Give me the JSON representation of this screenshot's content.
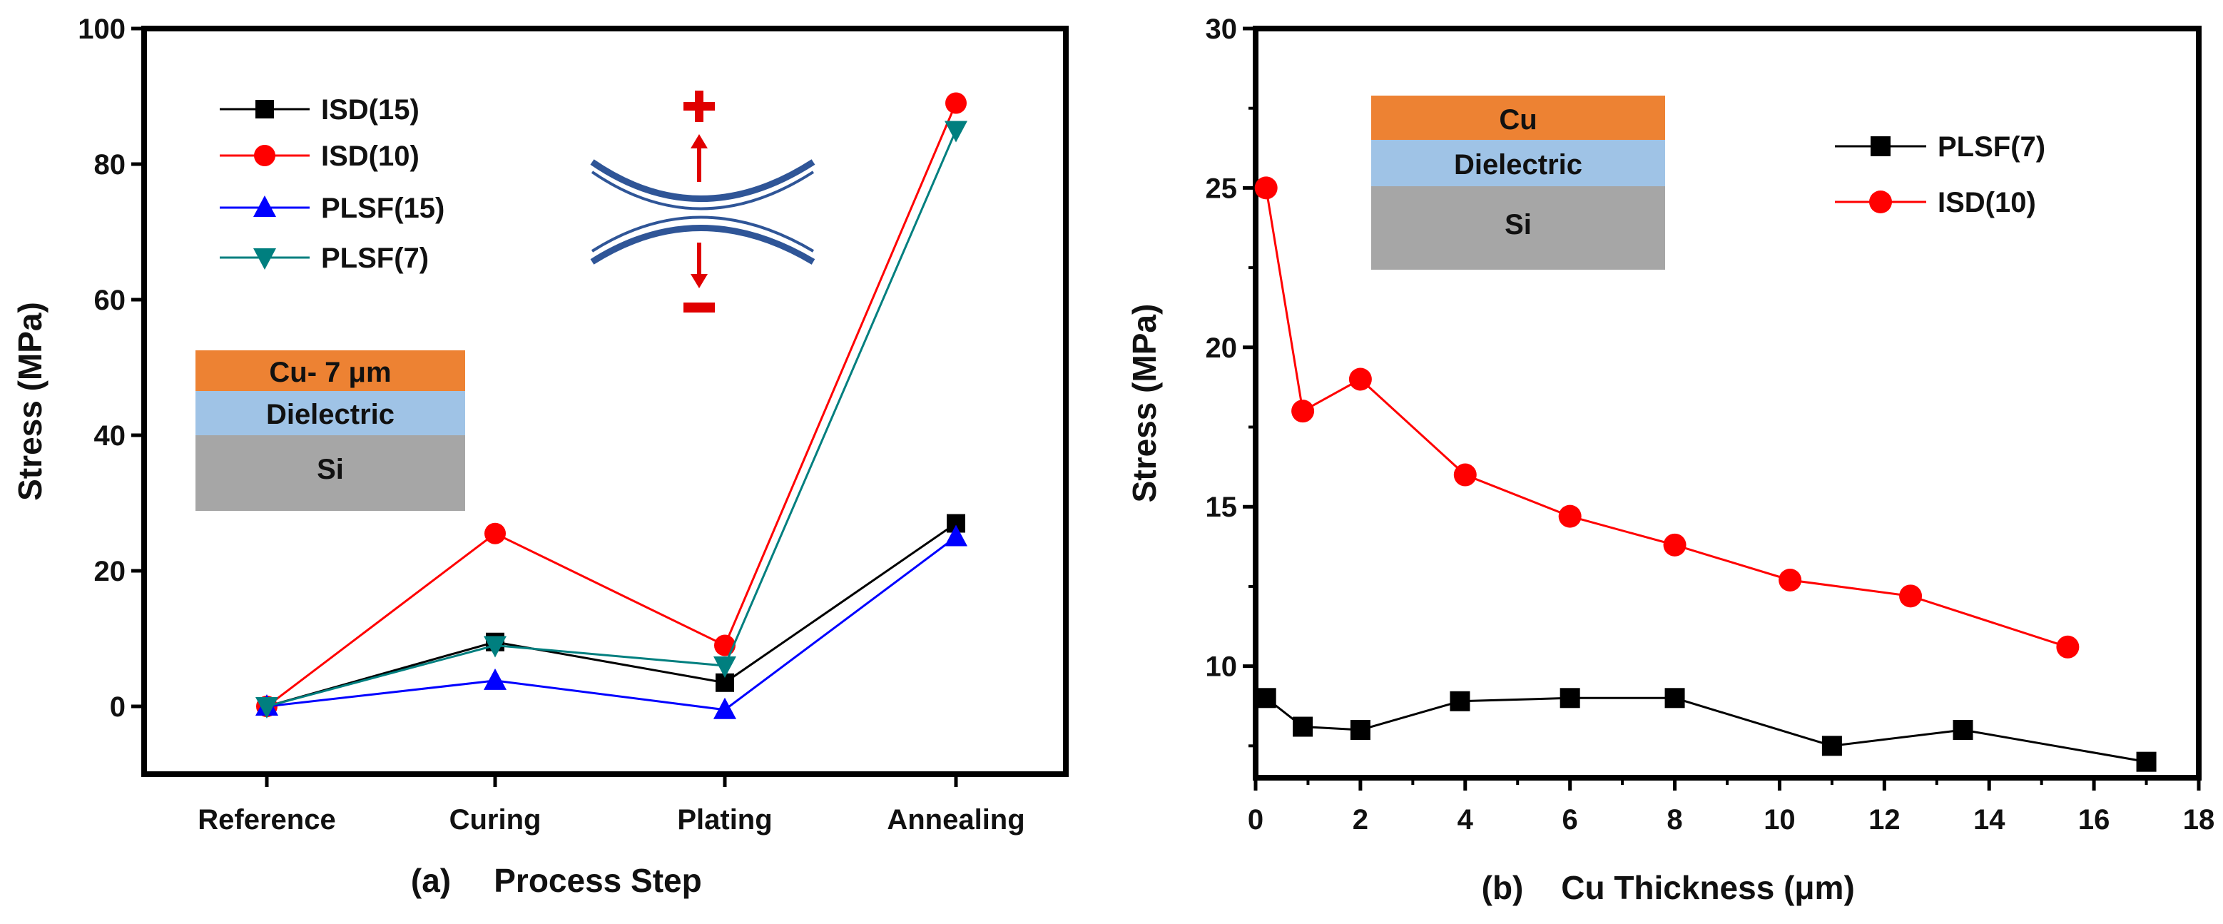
{
  "chart_data": [
    {
      "type": "line",
      "panel_label": "(a)",
      "xlabel": "Process Step",
      "ylabel": "Stress (MPa)",
      "categories": [
        "Reference",
        "Curing",
        "Plating",
        "Annealing"
      ],
      "ylim": [
        -10,
        100
      ],
      "yticks": [
        0,
        20,
        40,
        60,
        80,
        100
      ],
      "legend_position": "top-left",
      "series": [
        {
          "name": "ISD(15)",
          "values": [
            0,
            9.5,
            3.5,
            27
          ],
          "color": "#000000",
          "marker": "square"
        },
        {
          "name": "ISD(10)",
          "values": [
            0,
            25.5,
            9,
            89
          ],
          "color": "#ff0000",
          "marker": "circle"
        },
        {
          "name": "PLSF(15)",
          "values": [
            0,
            3.8,
            -0.5,
            25
          ],
          "color": "#0000ff",
          "marker": "triangle-up"
        },
        {
          "name": "PLSF(7)",
          "values": [
            0,
            9,
            6,
            85
          ],
          "color": "#007f7f",
          "marker": "triangle-down"
        }
      ],
      "inset_layers": [
        "Cu- 7 μm",
        "Dielectric",
        "Si"
      ],
      "annotation_signs": [
        "+",
        "−"
      ]
    },
    {
      "type": "line",
      "panel_label": "(b)",
      "xlabel": "Cu Thickness (μm)",
      "ylabel": "Stress (MPa)",
      "xlim": [
        0,
        18
      ],
      "ylim": [
        6.5,
        30
      ],
      "xticks": [
        0,
        2,
        4,
        6,
        8,
        10,
        12,
        14,
        16,
        18
      ],
      "yticks": [
        10,
        15,
        20,
        25,
        30
      ],
      "legend_position": "top-right",
      "series": [
        {
          "name": "PLSF(7)",
          "x": [
            0.2,
            0.9,
            2,
            3.9,
            6,
            8,
            11,
            13.5,
            17
          ],
          "values": [
            9,
            8.1,
            8,
            8.9,
            9,
            9,
            7.5,
            8,
            7
          ],
          "color": "#000000",
          "marker": "square"
        },
        {
          "name": "ISD(10)",
          "x": [
            0.2,
            0.9,
            2,
            4,
            6,
            8,
            10.2,
            12.5,
            15.5
          ],
          "values": [
            25,
            18,
            19,
            16,
            14.7,
            13.8,
            12.7,
            12.2,
            10.6
          ],
          "color": "#ff0000",
          "marker": "circle"
        }
      ],
      "inset_layers": [
        "Cu",
        "Dielectric",
        "Si"
      ]
    }
  ]
}
